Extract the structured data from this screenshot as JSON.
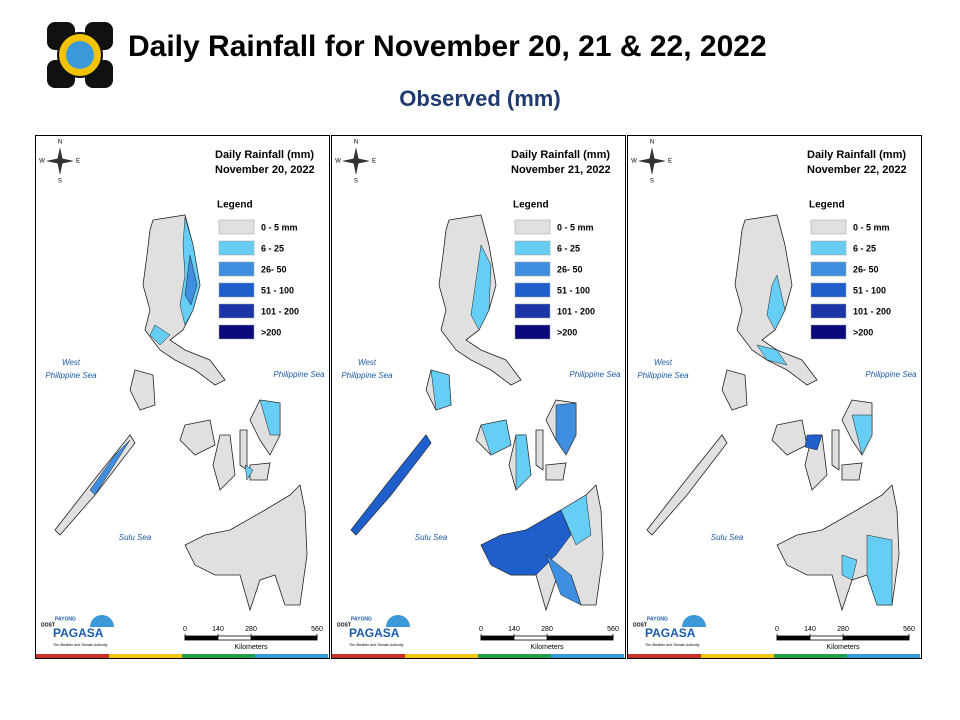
{
  "header": {
    "title": "Daily Rainfall for November 20, 21 & 22, 2022",
    "subtitle": "Observed (mm)"
  },
  "legend": {
    "title": "Legend",
    "items": [
      {
        "label": "0 - 5 mm",
        "color": "#e0e0e0"
      },
      {
        "label": "6 - 25",
        "color": "#66cdf4"
      },
      {
        "label": "26- 50",
        "color": "#3f8fe0"
      },
      {
        "label": "51 - 100",
        "color": "#1f5fcc"
      },
      {
        "label": "101 - 200",
        "color": "#1a35a8"
      },
      {
        "label": ">200",
        "color": "#0a0a7a"
      }
    ]
  },
  "panels": [
    {
      "title": "Daily Rainfall (mm)",
      "date": "November 20, 2022"
    },
    {
      "title": "Daily Rainfall (mm)",
      "date": "November 21, 2022"
    },
    {
      "title": "Daily Rainfall (mm)",
      "date": "November 22, 2022"
    }
  ],
  "compass": {
    "n": "N",
    "e": "E",
    "s": "S",
    "w": "W"
  },
  "seas": {
    "west": [
      "West",
      "Philippine Sea"
    ],
    "east": "Philippine Sea",
    "sulu": "Sulu Sea"
  },
  "scale": {
    "ticks": [
      0,
      140,
      280,
      560
    ],
    "unit": "Kilometers"
  },
  "logo": {
    "prefix": "DOST",
    "tag": "PAYONG",
    "brand": "PAGASA",
    "motto": "The Weather and Climate Authority"
  }
}
